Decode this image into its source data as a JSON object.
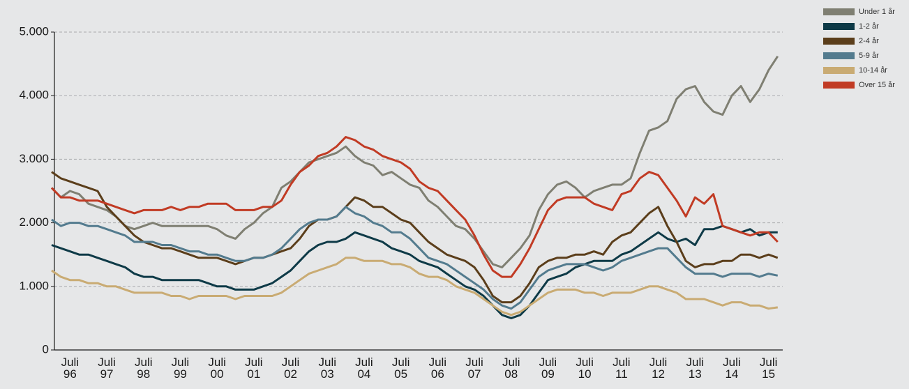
{
  "chart_data": {
    "type": "line",
    "categories": [
      null,
      null,
      "Juli\n96",
      null,
      null,
      null,
      "Juli\n97",
      null,
      null,
      null,
      "Juli\n98",
      null,
      null,
      null,
      "Juli\n99",
      null,
      null,
      null,
      "Juli\n00",
      null,
      null,
      null,
      "Juli\n01",
      null,
      null,
      null,
      "Juli\n02",
      null,
      null,
      null,
      "Juli\n03",
      null,
      null,
      null,
      "Juli\n04",
      null,
      null,
      null,
      "Juli\n05",
      null,
      null,
      null,
      "Juli\n06",
      null,
      null,
      null,
      "Juli\n07",
      null,
      null,
      null,
      "Juli\n08",
      null,
      null,
      null,
      "Juli\n09",
      null,
      null,
      null,
      "Juli\n10",
      null,
      null,
      null,
      "Juli\n11",
      null,
      null,
      null,
      "Juli\n12",
      null,
      null,
      null,
      "Juli\n13",
      null,
      null,
      null,
      "Juli\n14",
      null,
      null,
      null,
      "Juli\n15",
      null
    ],
    "series": [
      {
        "name": "Under 1 år",
        "color": "#7f7f72",
        "values": [
          2550,
          2400,
          2500,
          2450,
          2300,
          2250,
          2200,
          2100,
          1950,
          1900,
          1950,
          2000,
          1950,
          1950,
          1950,
          1950,
          1950,
          1950,
          1900,
          1800,
          1750,
          1900,
          2000,
          2150,
          2250,
          2550,
          2650,
          2800,
          2950,
          3000,
          3050,
          3100,
          3200,
          3050,
          2950,
          2900,
          2750,
          2800,
          2700,
          2600,
          2550,
          2350,
          2250,
          2100,
          1950,
          1900,
          1750,
          1550,
          1350,
          1300,
          1450,
          1600,
          1800,
          2200,
          2450,
          2600,
          2650,
          2550,
          2400,
          2500,
          2550,
          2600,
          2600,
          2700,
          3100,
          3450,
          3500,
          3600,
          3950,
          4100,
          4150,
          3900,
          3750,
          3700,
          4000,
          4150,
          3900,
          4100,
          4400,
          4620
        ]
      },
      {
        "name": "1-2 år",
        "color": "#0e3a47",
        "values": [
          1650,
          1600,
          1550,
          1500,
          1500,
          1450,
          1400,
          1350,
          1300,
          1200,
          1150,
          1150,
          1100,
          1100,
          1100,
          1100,
          1100,
          1050,
          1000,
          1000,
          950,
          950,
          950,
          1000,
          1050,
          1150,
          1250,
          1400,
          1550,
          1650,
          1700,
          1700,
          1750,
          1850,
          1800,
          1750,
          1700,
          1600,
          1550,
          1500,
          1400,
          1350,
          1300,
          1200,
          1100,
          1000,
          950,
          850,
          700,
          550,
          500,
          550,
          700,
          900,
          1100,
          1150,
          1200,
          1300,
          1350,
          1400,
          1400,
          1400,
          1500,
          1550,
          1650,
          1750,
          1850,
          1750,
          1700,
          1750,
          1650,
          1900,
          1900,
          1950,
          1900,
          1850,
          1900,
          1800,
          1850,
          1850
        ]
      },
      {
        "name": "2-4 år",
        "color": "#5b3e1b",
        "values": [
          2800,
          2700,
          2650,
          2600,
          2550,
          2500,
          2250,
          2100,
          1950,
          1800,
          1700,
          1650,
          1600,
          1600,
          1550,
          1500,
          1450,
          1450,
          1450,
          1400,
          1350,
          1400,
          1450,
          1450,
          1500,
          1550,
          1600,
          1750,
          1950,
          2050,
          2050,
          2100,
          2250,
          2400,
          2350,
          2250,
          2250,
          2150,
          2050,
          2000,
          1850,
          1700,
          1600,
          1500,
          1450,
          1400,
          1300,
          1100,
          850,
          750,
          750,
          850,
          1050,
          1300,
          1400,
          1450,
          1450,
          1500,
          1500,
          1550,
          1500,
          1700,
          1800,
          1850,
          2000,
          2150,
          2250,
          1950,
          1700,
          1400,
          1300,
          1350,
          1350,
          1400,
          1400,
          1500,
          1500,
          1450,
          1500,
          1450
        ]
      },
      {
        "name": "5-9 år",
        "color": "#537b8e",
        "values": [
          2050,
          1950,
          2000,
          2000,
          1950,
          1950,
          1900,
          1850,
          1800,
          1700,
          1700,
          1700,
          1650,
          1650,
          1600,
          1550,
          1550,
          1500,
          1500,
          1450,
          1400,
          1400,
          1450,
          1450,
          1500,
          1600,
          1750,
          1900,
          2000,
          2050,
          2050,
          2100,
          2250,
          2150,
          2100,
          2000,
          1950,
          1850,
          1850,
          1750,
          1600,
          1450,
          1400,
          1350,
          1250,
          1150,
          1050,
          950,
          800,
          700,
          650,
          750,
          950,
          1150,
          1250,
          1300,
          1350,
          1350,
          1350,
          1300,
          1250,
          1300,
          1400,
          1450,
          1500,
          1550,
          1600,
          1600,
          1450,
          1300,
          1200,
          1200,
          1200,
          1150,
          1200,
          1200,
          1200,
          1150,
          1200,
          1170
        ]
      },
      {
        "name": "10-14 år",
        "color": "#c9ab73",
        "values": [
          1250,
          1150,
          1100,
          1100,
          1050,
          1050,
          1000,
          1000,
          950,
          900,
          900,
          900,
          900,
          850,
          850,
          800,
          850,
          850,
          850,
          850,
          800,
          850,
          850,
          850,
          850,
          900,
          1000,
          1100,
          1200,
          1250,
          1300,
          1350,
          1450,
          1450,
          1400,
          1400,
          1400,
          1350,
          1350,
          1300,
          1200,
          1150,
          1150,
          1100,
          1000,
          950,
          900,
          800,
          700,
          600,
          550,
          600,
          700,
          800,
          900,
          950,
          950,
          950,
          900,
          900,
          850,
          900,
          900,
          900,
          950,
          1000,
          1000,
          950,
          900,
          800,
          800,
          800,
          750,
          700,
          750,
          750,
          700,
          700,
          650,
          670
        ]
      },
      {
        "name": "Over 15 år",
        "color": "#c13b24",
        "values": [
          2550,
          2400,
          2400,
          2350,
          2350,
          2350,
          2300,
          2250,
          2200,
          2150,
          2200,
          2200,
          2200,
          2250,
          2200,
          2250,
          2250,
          2300,
          2300,
          2300,
          2200,
          2200,
          2200,
          2250,
          2250,
          2350,
          2600,
          2800,
          2900,
          3050,
          3100,
          3200,
          3350,
          3300,
          3200,
          3150,
          3050,
          3000,
          2950,
          2850,
          2650,
          2550,
          2500,
          2350,
          2200,
          2050,
          1800,
          1500,
          1250,
          1150,
          1150,
          1350,
          1600,
          1900,
          2200,
          2350,
          2400,
          2400,
          2400,
          2300,
          2250,
          2200,
          2450,
          2500,
          2700,
          2800,
          2750,
          2550,
          2350,
          2100,
          2400,
          2300,
          2450,
          1950,
          1900,
          1850,
          1800,
          1850,
          1850,
          1700
        ]
      }
    ],
    "ylim": [
      0,
      5000
    ],
    "yticks": [
      {
        "value": 0,
        "label": "0"
      },
      {
        "value": 1000,
        "label": "1.000"
      },
      {
        "value": 2000,
        "label": "2.000"
      },
      {
        "value": 3000,
        "label": "3.000"
      },
      {
        "value": 4000,
        "label": "4.000"
      },
      {
        "value": 5000,
        "label": "5.000"
      }
    ],
    "grid": true
  }
}
